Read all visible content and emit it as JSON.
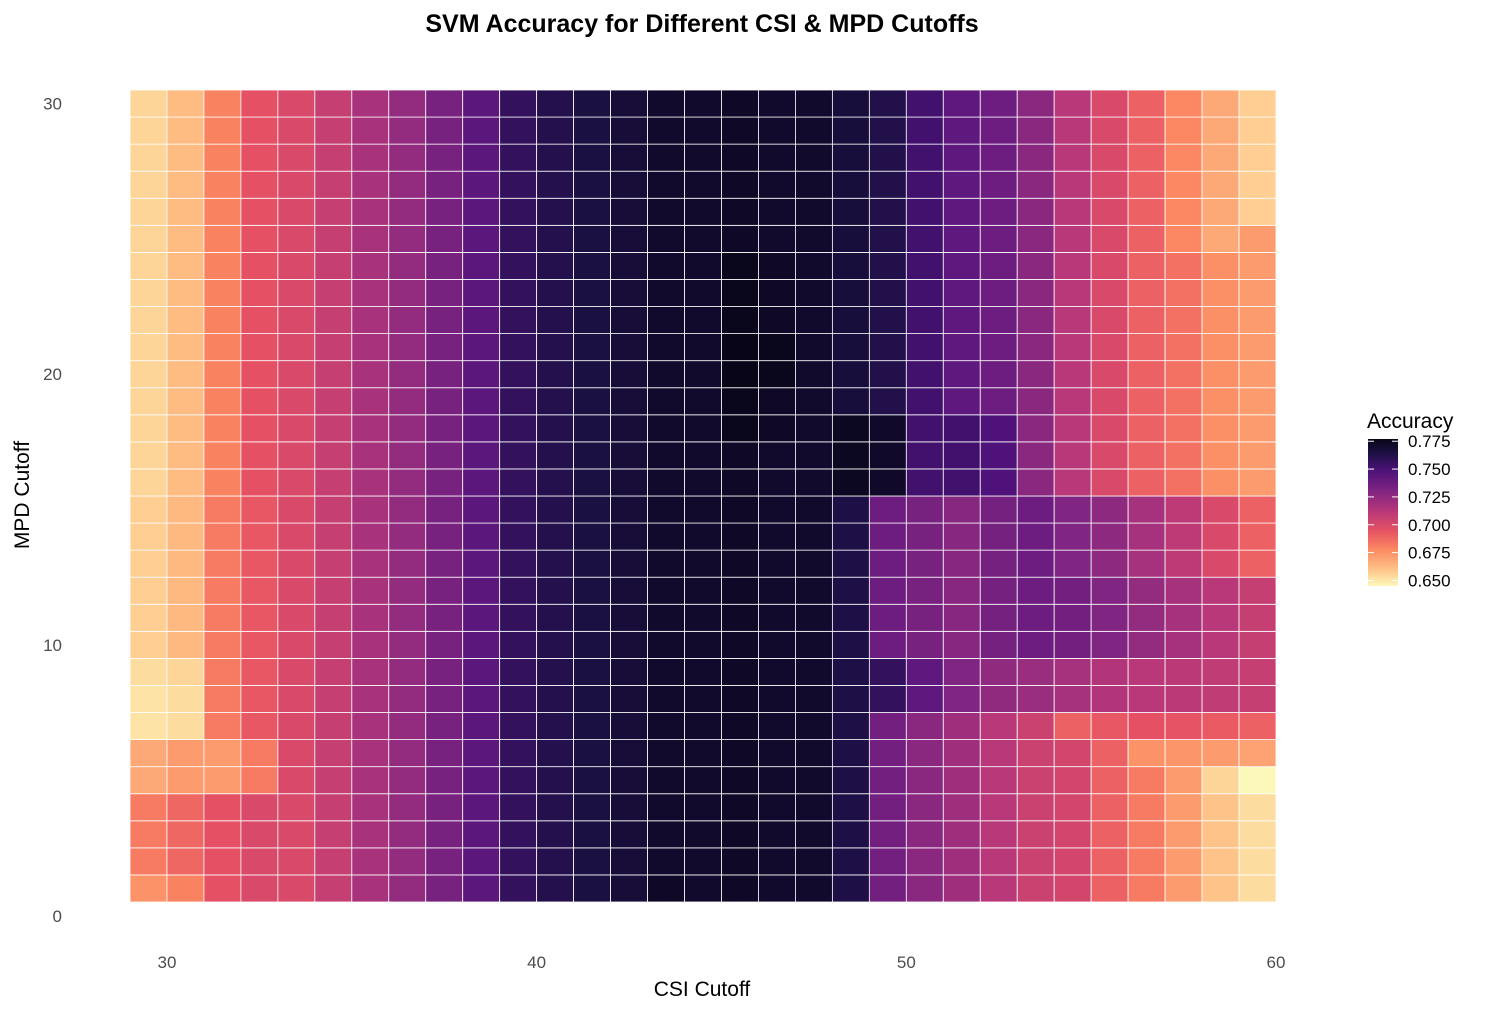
{
  "chart_data": {
    "type": "heatmap",
    "title": "SVM Accuracy for Different CSI & MPD Cutoffs",
    "xlabel": "CSI Cutoff",
    "ylabel": "MPD Cutoff",
    "x_ticks": [
      30,
      40,
      50,
      60
    ],
    "y_ticks": [
      0,
      10,
      20,
      30
    ],
    "x": [
      30,
      31,
      32,
      33,
      34,
      35,
      36,
      37,
      38,
      39,
      40,
      41,
      42,
      43,
      44,
      45,
      46,
      47,
      48,
      49,
      50,
      51,
      52,
      53,
      54,
      55,
      56,
      57,
      58,
      59,
      60
    ],
    "y": [
      1,
      2,
      3,
      4,
      5,
      6,
      7,
      8,
      9,
      10,
      11,
      12,
      13,
      14,
      15,
      16,
      17,
      18,
      19,
      20,
      21,
      22,
      23,
      24,
      25,
      26,
      27,
      28,
      29,
      30
    ],
    "xlim": [
      29.5,
      60.5
    ],
    "ylim": [
      0,
      30.5
    ],
    "grid": true,
    "colormap": "magma (reversed)",
    "legend": {
      "title": "Accuracy",
      "position": "right",
      "labels": [
        "0.775",
        "0.750",
        "0.725",
        "0.700",
        "0.675",
        "0.650"
      ],
      "values": [
        0.775,
        0.75,
        0.725,
        0.7,
        0.675,
        0.65
      ],
      "range": [
        0.645,
        0.777
      ]
    },
    "z_note": "Accuracy values read per cell: z[row][col], row = MPD cutoff 1..30, col = CSI cutoff 30..60",
    "z": []
  }
}
